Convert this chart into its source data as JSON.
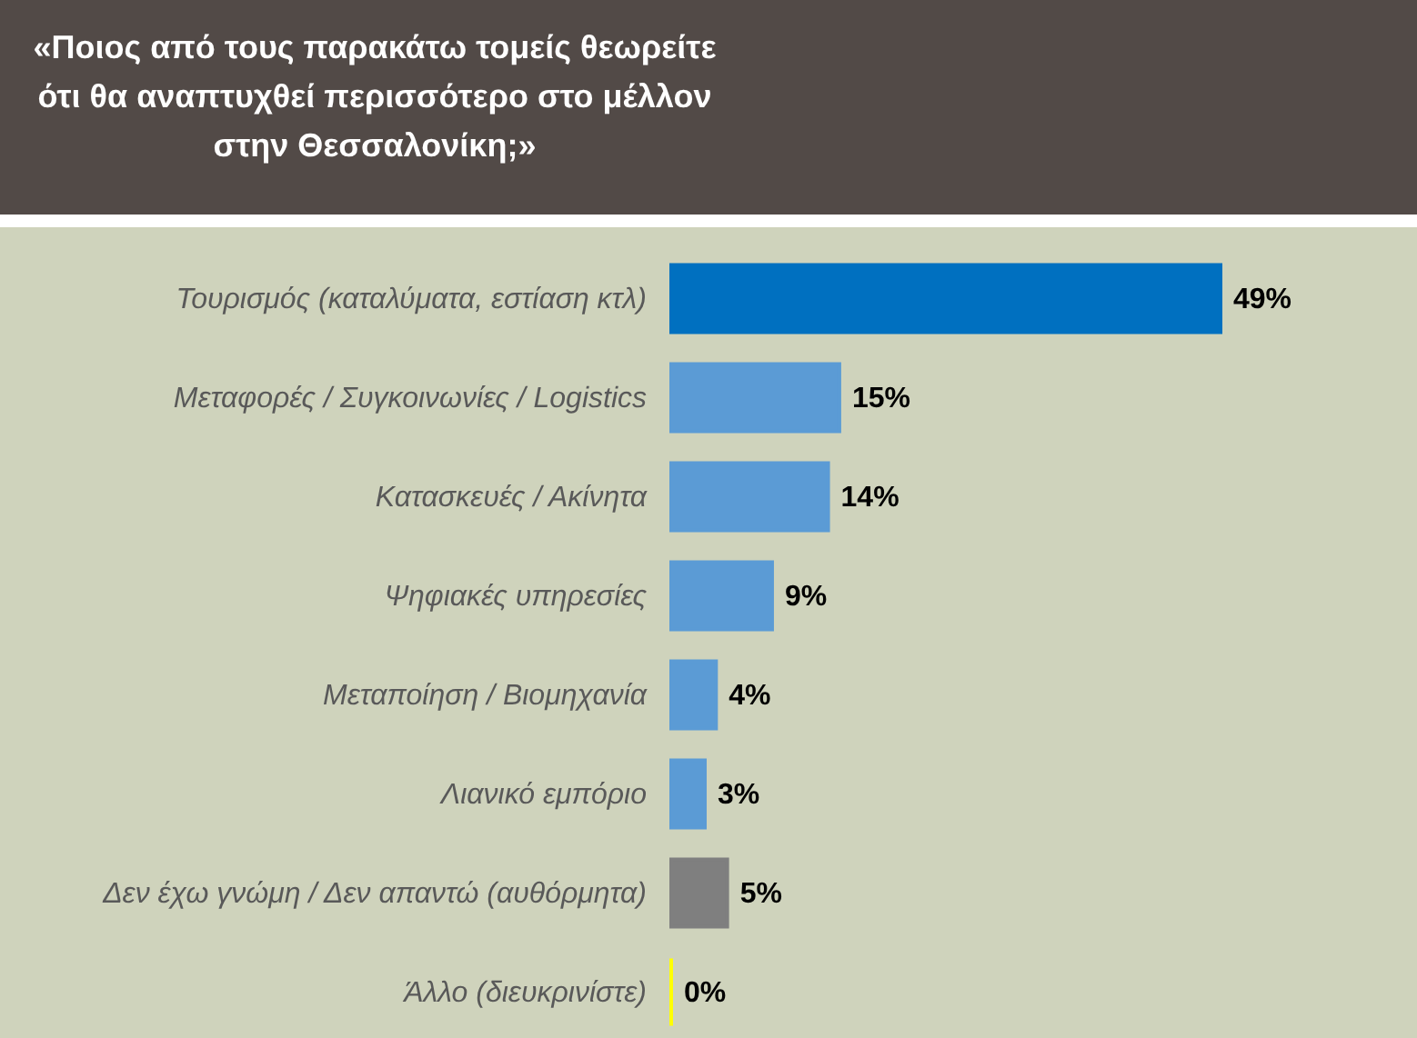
{
  "chart_data": {
    "type": "bar",
    "orientation": "horizontal",
    "title": "«Ποιος από τους παρακάτω τομείς θεωρείτε ότι θα αναπτυχθεί περισσότερο στο μέλλον στην Θεσσαλονίκη;»",
    "categories": [
      "Τουρισμός (καταλύματα, εστίαση κτλ)",
      "Μεταφορές / Συγκοινωνίες / Logistics",
      "Κατασκευές / Ακίνητα",
      "Ψηφιακές υπηρεσίες",
      "Μεταποίηση / Βιομηχανία",
      "Λιανικό εμπόριο",
      "Δεν έχω γνώμη / Δεν απαντώ (αυθόρμητα)",
      "Άλλο (διευκρινίστε)"
    ],
    "values": [
      49,
      15,
      14,
      9,
      4,
      3,
      5,
      0
    ],
    "colors": [
      "#0070c0",
      "#5b9bd5",
      "#5b9bd5",
      "#5b9bd5",
      "#5b9bd5",
      "#5b9bd5",
      "#7f7f7f",
      "#ffff00"
    ],
    "value_labels": [
      "49%",
      "15%",
      "14%",
      "9%",
      "4%",
      "3%",
      "5%",
      "0%"
    ]
  }
}
